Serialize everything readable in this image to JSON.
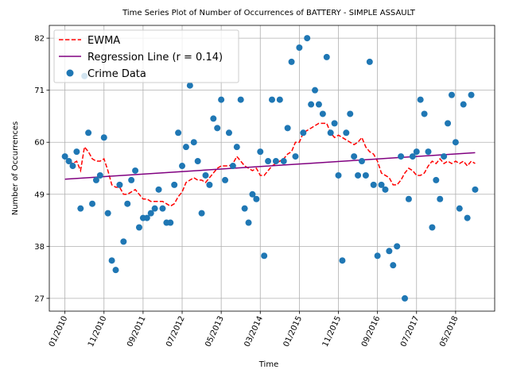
{
  "chart_data": {
    "type": "scatter",
    "title": "Time Series Plot of Number of Occurrences of BATTERY - SIMPLE ASSAULT",
    "xlabel": "Time",
    "ylabel": "Number of Occurrences",
    "x": [
      "01/2010",
      "02/2010",
      "03/2010",
      "04/2010",
      "05/2010",
      "06/2010",
      "07/2010",
      "08/2010",
      "09/2010",
      "10/2010",
      "11/2010",
      "12/2010",
      "01/2011",
      "02/2011",
      "03/2011",
      "04/2011",
      "05/2011",
      "06/2011",
      "07/2011",
      "08/2011",
      "09/2011",
      "10/2011",
      "11/2011",
      "12/2011",
      "01/2012",
      "02/2012",
      "03/2012",
      "04/2012",
      "05/2012",
      "06/2012",
      "07/2012",
      "08/2012",
      "09/2012",
      "10/2012",
      "11/2012",
      "12/2012",
      "01/2013",
      "02/2013",
      "03/2013",
      "04/2013",
      "05/2013",
      "06/2013",
      "07/2013",
      "08/2013",
      "09/2013",
      "10/2013",
      "11/2013",
      "12/2013",
      "01/2014",
      "02/2014",
      "03/2014",
      "04/2014",
      "05/2014",
      "06/2014",
      "07/2014",
      "08/2014",
      "09/2014",
      "10/2014",
      "11/2014",
      "12/2014",
      "01/2015",
      "02/2015",
      "03/2015",
      "04/2015",
      "05/2015",
      "06/2015",
      "07/2015",
      "08/2015",
      "09/2015",
      "10/2015",
      "11/2015",
      "12/2015",
      "01/2016",
      "02/2016",
      "03/2016",
      "04/2016",
      "05/2016",
      "06/2016",
      "07/2016",
      "08/2016",
      "09/2016",
      "10/2016",
      "11/2016",
      "12/2016",
      "01/2017",
      "02/2017",
      "03/2017",
      "04/2017",
      "05/2017",
      "06/2017",
      "07/2017",
      "08/2017",
      "09/2017",
      "10/2017",
      "11/2017",
      "12/2017",
      "01/2018",
      "02/2018",
      "03/2018",
      "04/2018",
      "05/2018",
      "06/2018",
      "07/2018",
      "08/2018",
      "09/2018",
      "10/2018"
    ],
    "series": [
      {
        "name": "EWMA",
        "kind": "line",
        "style": "dashed",
        "color": "#ff0000",
        "values": [
          57,
          56,
          55.5,
          56,
          54,
          59,
          58,
          56.5,
          56,
          56,
          56.5,
          54,
          51,
          50.5,
          50.5,
          49,
          49,
          49.5,
          50,
          49,
          48,
          48,
          47.5,
          47.5,
          47.5,
          47.5,
          47,
          46.5,
          47,
          48.5,
          49.5,
          51.5,
          52,
          52.5,
          52,
          52,
          51.5,
          52.5,
          53.5,
          54.5,
          55,
          55,
          55,
          55.5,
          57,
          56,
          55,
          54.5,
          54,
          54.5,
          53,
          53,
          54,
          55,
          55.5,
          56,
          56.5,
          57.5,
          58,
          60,
          60,
          62,
          62.5,
          63,
          63.5,
          64,
          64,
          64,
          62,
          61,
          61.5,
          61,
          60.5,
          60,
          59.5,
          60,
          61,
          59,
          58,
          57.5,
          56,
          53.5,
          53,
          52.5,
          51,
          51,
          52,
          53.5,
          54.5,
          54,
          53,
          53,
          53.5,
          55,
          56,
          55.5,
          56.5,
          55.5,
          56,
          55.5,
          56,
          55.5,
          56,
          55,
          56,
          55.5
        ]
      },
      {
        "name": "Regression Line (r = 0.14)",
        "kind": "line",
        "style": "solid",
        "color": "#800080",
        "x": [
          "01/2010",
          "10/2018"
        ],
        "values": [
          52.2,
          57.8
        ]
      },
      {
        "name": "Crime Data",
        "kind": "scatter",
        "color": "#1f77b4",
        "values": [
          57,
          56,
          55,
          58,
          46,
          74,
          62,
          47,
          52,
          53,
          61,
          45,
          35,
          33,
          51,
          39,
          47,
          52,
          54,
          42,
          44,
          44,
          45,
          46,
          50,
          46,
          43,
          43,
          51,
          62,
          55,
          59,
          72,
          60,
          56,
          45,
          53,
          51,
          65,
          63,
          69,
          52,
          62,
          55,
          59,
          69,
          46,
          43,
          49,
          48,
          58,
          36,
          56,
          69,
          56,
          69,
          56,
          63,
          77,
          57,
          80,
          62,
          82,
          68,
          71,
          68,
          66,
          78,
          62,
          64,
          53,
          35,
          62,
          66,
          57,
          53,
          56,
          53,
          77,
          51,
          36,
          51,
          50,
          37,
          34,
          38,
          57,
          27,
          48,
          57,
          58,
          69,
          66,
          58,
          42,
          52,
          48,
          57,
          64,
          70,
          60,
          46,
          68,
          44,
          70,
          50
        ]
      }
    ],
    "xlim": [
      "09/2009",
      "03/2019"
    ],
    "xticks": [
      "01/2010",
      "11/2010",
      "09/2011",
      "07/2012",
      "05/2013",
      "03/2014",
      "01/2015",
      "11/2015",
      "09/2016",
      "07/2017",
      "05/2018"
    ],
    "ylim": [
      24.3,
      84.7
    ],
    "yticks": [
      27,
      38,
      49,
      60,
      71,
      82
    ],
    "grid": true,
    "legend": "upper left"
  }
}
